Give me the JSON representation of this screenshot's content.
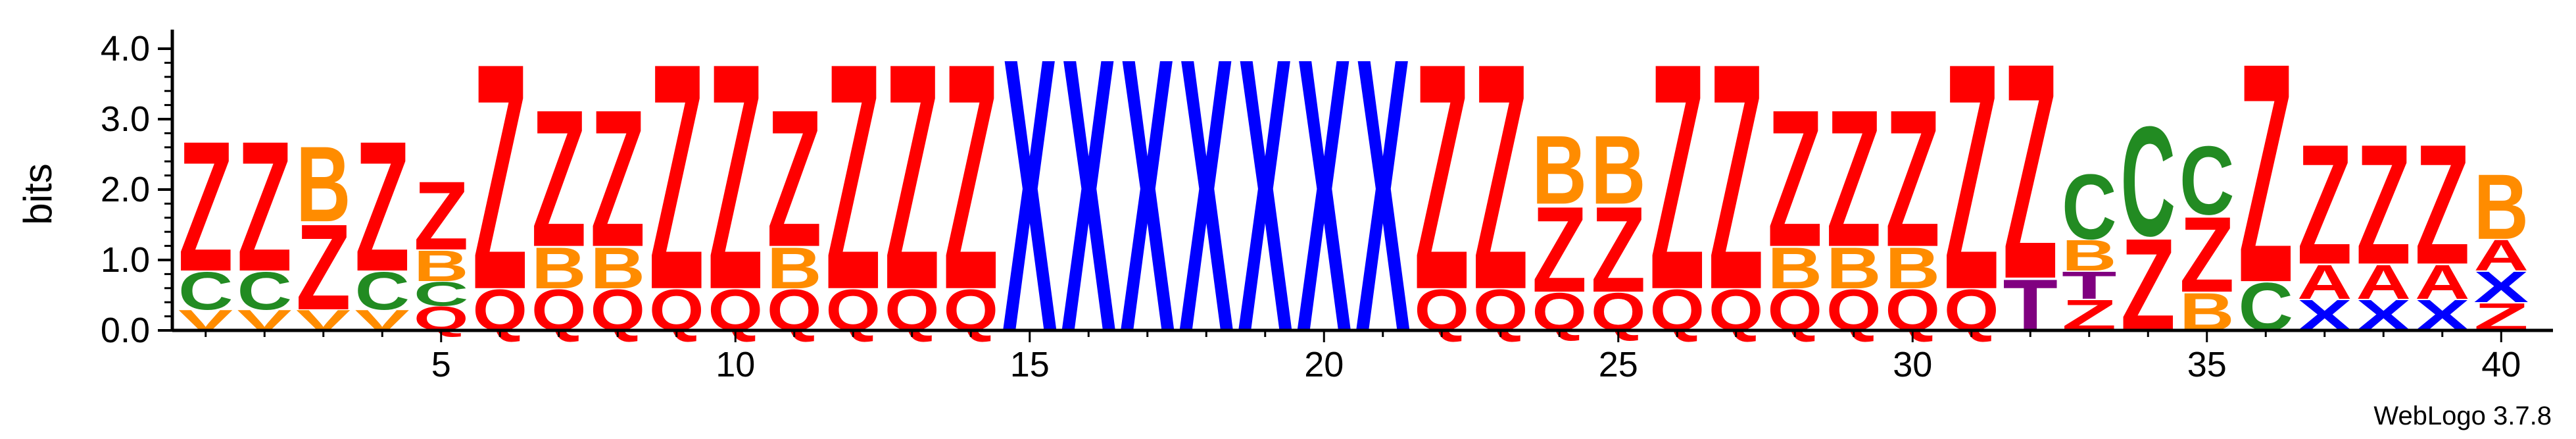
{
  "chart_data": {
    "type": "sequence-logo",
    "ylabel": "bits",
    "ylim": [
      0,
      4.0
    ],
    "y_ticks": [
      "0.0",
      "1.0",
      "2.0",
      "3.0",
      "4.0"
    ],
    "x_ticks": [
      "5",
      "10",
      "15",
      "20",
      "25",
      "30",
      "35",
      "40"
    ],
    "x_range": [
      1,
      40
    ],
    "footer": "WebLogo 3.7.8",
    "colors": {
      "Z": "#ff0000",
      "Q": "#ff0000",
      "X": "#0000ff",
      "B": "#ff8c00",
      "C": "#228b22",
      "V": "#ff8c00",
      "T": "#800080",
      "A": "#ff0000"
    },
    "positions": [
      {
        "pos": 1,
        "stack": [
          [
            "V",
            0.3
          ],
          [
            "C",
            0.55
          ],
          [
            "Z",
            1.9
          ]
        ]
      },
      {
        "pos": 2,
        "stack": [
          [
            "V",
            0.3
          ],
          [
            "C",
            0.55
          ],
          [
            "Z",
            1.9
          ]
        ]
      },
      {
        "pos": 3,
        "stack": [
          [
            "V",
            0.3
          ],
          [
            "Z",
            1.25
          ],
          [
            "B",
            1.1
          ]
        ]
      },
      {
        "pos": 4,
        "stack": [
          [
            "V",
            0.3
          ],
          [
            "C",
            0.55
          ],
          [
            "Z",
            1.9
          ]
        ]
      },
      {
        "pos": 5,
        "stack": [
          [
            "Q",
            0.35
          ],
          [
            "C",
            0.35
          ],
          [
            "B",
            0.45
          ],
          [
            "Z",
            1.0
          ]
        ]
      },
      {
        "pos": 6,
        "stack": [
          [
            "Q",
            0.6
          ],
          [
            "Z",
            3.3
          ]
        ]
      },
      {
        "pos": 7,
        "stack": [
          [
            "Q",
            0.6
          ],
          [
            "B",
            0.6
          ],
          [
            "Z",
            2.0
          ]
        ]
      },
      {
        "pos": 8,
        "stack": [
          [
            "Q",
            0.6
          ],
          [
            "B",
            0.6
          ],
          [
            "Z",
            2.0
          ]
        ]
      },
      {
        "pos": 9,
        "stack": [
          [
            "Q",
            0.6
          ],
          [
            "Z",
            3.3
          ]
        ]
      },
      {
        "pos": 10,
        "stack": [
          [
            "Q",
            0.6
          ],
          [
            "Z",
            3.3
          ]
        ]
      },
      {
        "pos": 11,
        "stack": [
          [
            "Q",
            0.6
          ],
          [
            "B",
            0.6
          ],
          [
            "Z",
            2.0
          ]
        ]
      },
      {
        "pos": 12,
        "stack": [
          [
            "Q",
            0.6
          ],
          [
            "Z",
            3.3
          ]
        ]
      },
      {
        "pos": 13,
        "stack": [
          [
            "Q",
            0.6
          ],
          [
            "Z",
            3.3
          ]
        ]
      },
      {
        "pos": 14,
        "stack": [
          [
            "Q",
            0.6
          ],
          [
            "Z",
            3.3
          ]
        ]
      },
      {
        "pos": 15,
        "stack": [
          [
            "X",
            4.0
          ]
        ]
      },
      {
        "pos": 16,
        "stack": [
          [
            "X",
            4.0
          ]
        ]
      },
      {
        "pos": 17,
        "stack": [
          [
            "X",
            4.0
          ]
        ]
      },
      {
        "pos": 18,
        "stack": [
          [
            "X",
            4.0
          ]
        ]
      },
      {
        "pos": 19,
        "stack": [
          [
            "X",
            4.0
          ]
        ]
      },
      {
        "pos": 20,
        "stack": [
          [
            "X",
            4.0
          ]
        ]
      },
      {
        "pos": 21,
        "stack": [
          [
            "X",
            4.0
          ]
        ]
      },
      {
        "pos": 22,
        "stack": [
          [
            "Q",
            0.6
          ],
          [
            "Z",
            3.3
          ]
        ]
      },
      {
        "pos": 23,
        "stack": [
          [
            "Q",
            0.6
          ],
          [
            "Z",
            3.3
          ]
        ]
      },
      {
        "pos": 24,
        "stack": [
          [
            "Q",
            0.55
          ],
          [
            "Z",
            1.25
          ],
          [
            "B",
            1.0
          ]
        ]
      },
      {
        "pos": 25,
        "stack": [
          [
            "Q",
            0.55
          ],
          [
            "Z",
            1.25
          ],
          [
            "B",
            1.0
          ]
        ]
      },
      {
        "pos": 26,
        "stack": [
          [
            "Q",
            0.6
          ],
          [
            "Z",
            3.3
          ]
        ]
      },
      {
        "pos": 27,
        "stack": [
          [
            "Q",
            0.6
          ],
          [
            "Z",
            3.3
          ]
        ]
      },
      {
        "pos": 28,
        "stack": [
          [
            "Q",
            0.6
          ],
          [
            "B",
            0.6
          ],
          [
            "Z",
            2.0
          ]
        ]
      },
      {
        "pos": 29,
        "stack": [
          [
            "Q",
            0.6
          ],
          [
            "B",
            0.6
          ],
          [
            "Z",
            2.0
          ]
        ]
      },
      {
        "pos": 30,
        "stack": [
          [
            "Q",
            0.6
          ],
          [
            "B",
            0.6
          ],
          [
            "Z",
            2.0
          ]
        ]
      },
      {
        "pos": 31,
        "stack": [
          [
            "Q",
            0.6
          ],
          [
            "Z",
            3.3
          ]
        ]
      },
      {
        "pos": 32,
        "stack": [
          [
            "T",
            0.75
          ],
          [
            "Z",
            3.15
          ]
        ]
      },
      {
        "pos": 33,
        "stack": [
          [
            "Z",
            0.45
          ],
          [
            "T",
            0.4
          ],
          [
            "B",
            0.45
          ],
          [
            "C",
            0.95
          ]
        ]
      },
      {
        "pos": 34,
        "stack": [
          [
            "Z",
            1.35
          ],
          [
            "C",
            1.6
          ]
        ]
      },
      {
        "pos": 35,
        "stack": [
          [
            "B",
            0.55
          ],
          [
            "Z",
            1.1
          ],
          [
            "C",
            1.0
          ]
        ]
      },
      {
        "pos": 36,
        "stack": [
          [
            "C",
            0.7
          ],
          [
            "Z",
            3.2
          ]
        ]
      },
      {
        "pos": 37,
        "stack": [
          [
            "X",
            0.45
          ],
          [
            "A",
            0.5
          ],
          [
            "Z",
            1.75
          ]
        ]
      },
      {
        "pos": 38,
        "stack": [
          [
            "X",
            0.45
          ],
          [
            "A",
            0.5
          ],
          [
            "Z",
            1.75
          ]
        ]
      },
      {
        "pos": 39,
        "stack": [
          [
            "X",
            0.45
          ],
          [
            "A",
            0.5
          ],
          [
            "Z",
            1.75
          ]
        ]
      },
      {
        "pos": 40,
        "stack": [
          [
            "Z",
            0.4
          ],
          [
            "X",
            0.45
          ],
          [
            "A",
            0.45
          ],
          [
            "B",
            0.95
          ]
        ]
      }
    ]
  }
}
